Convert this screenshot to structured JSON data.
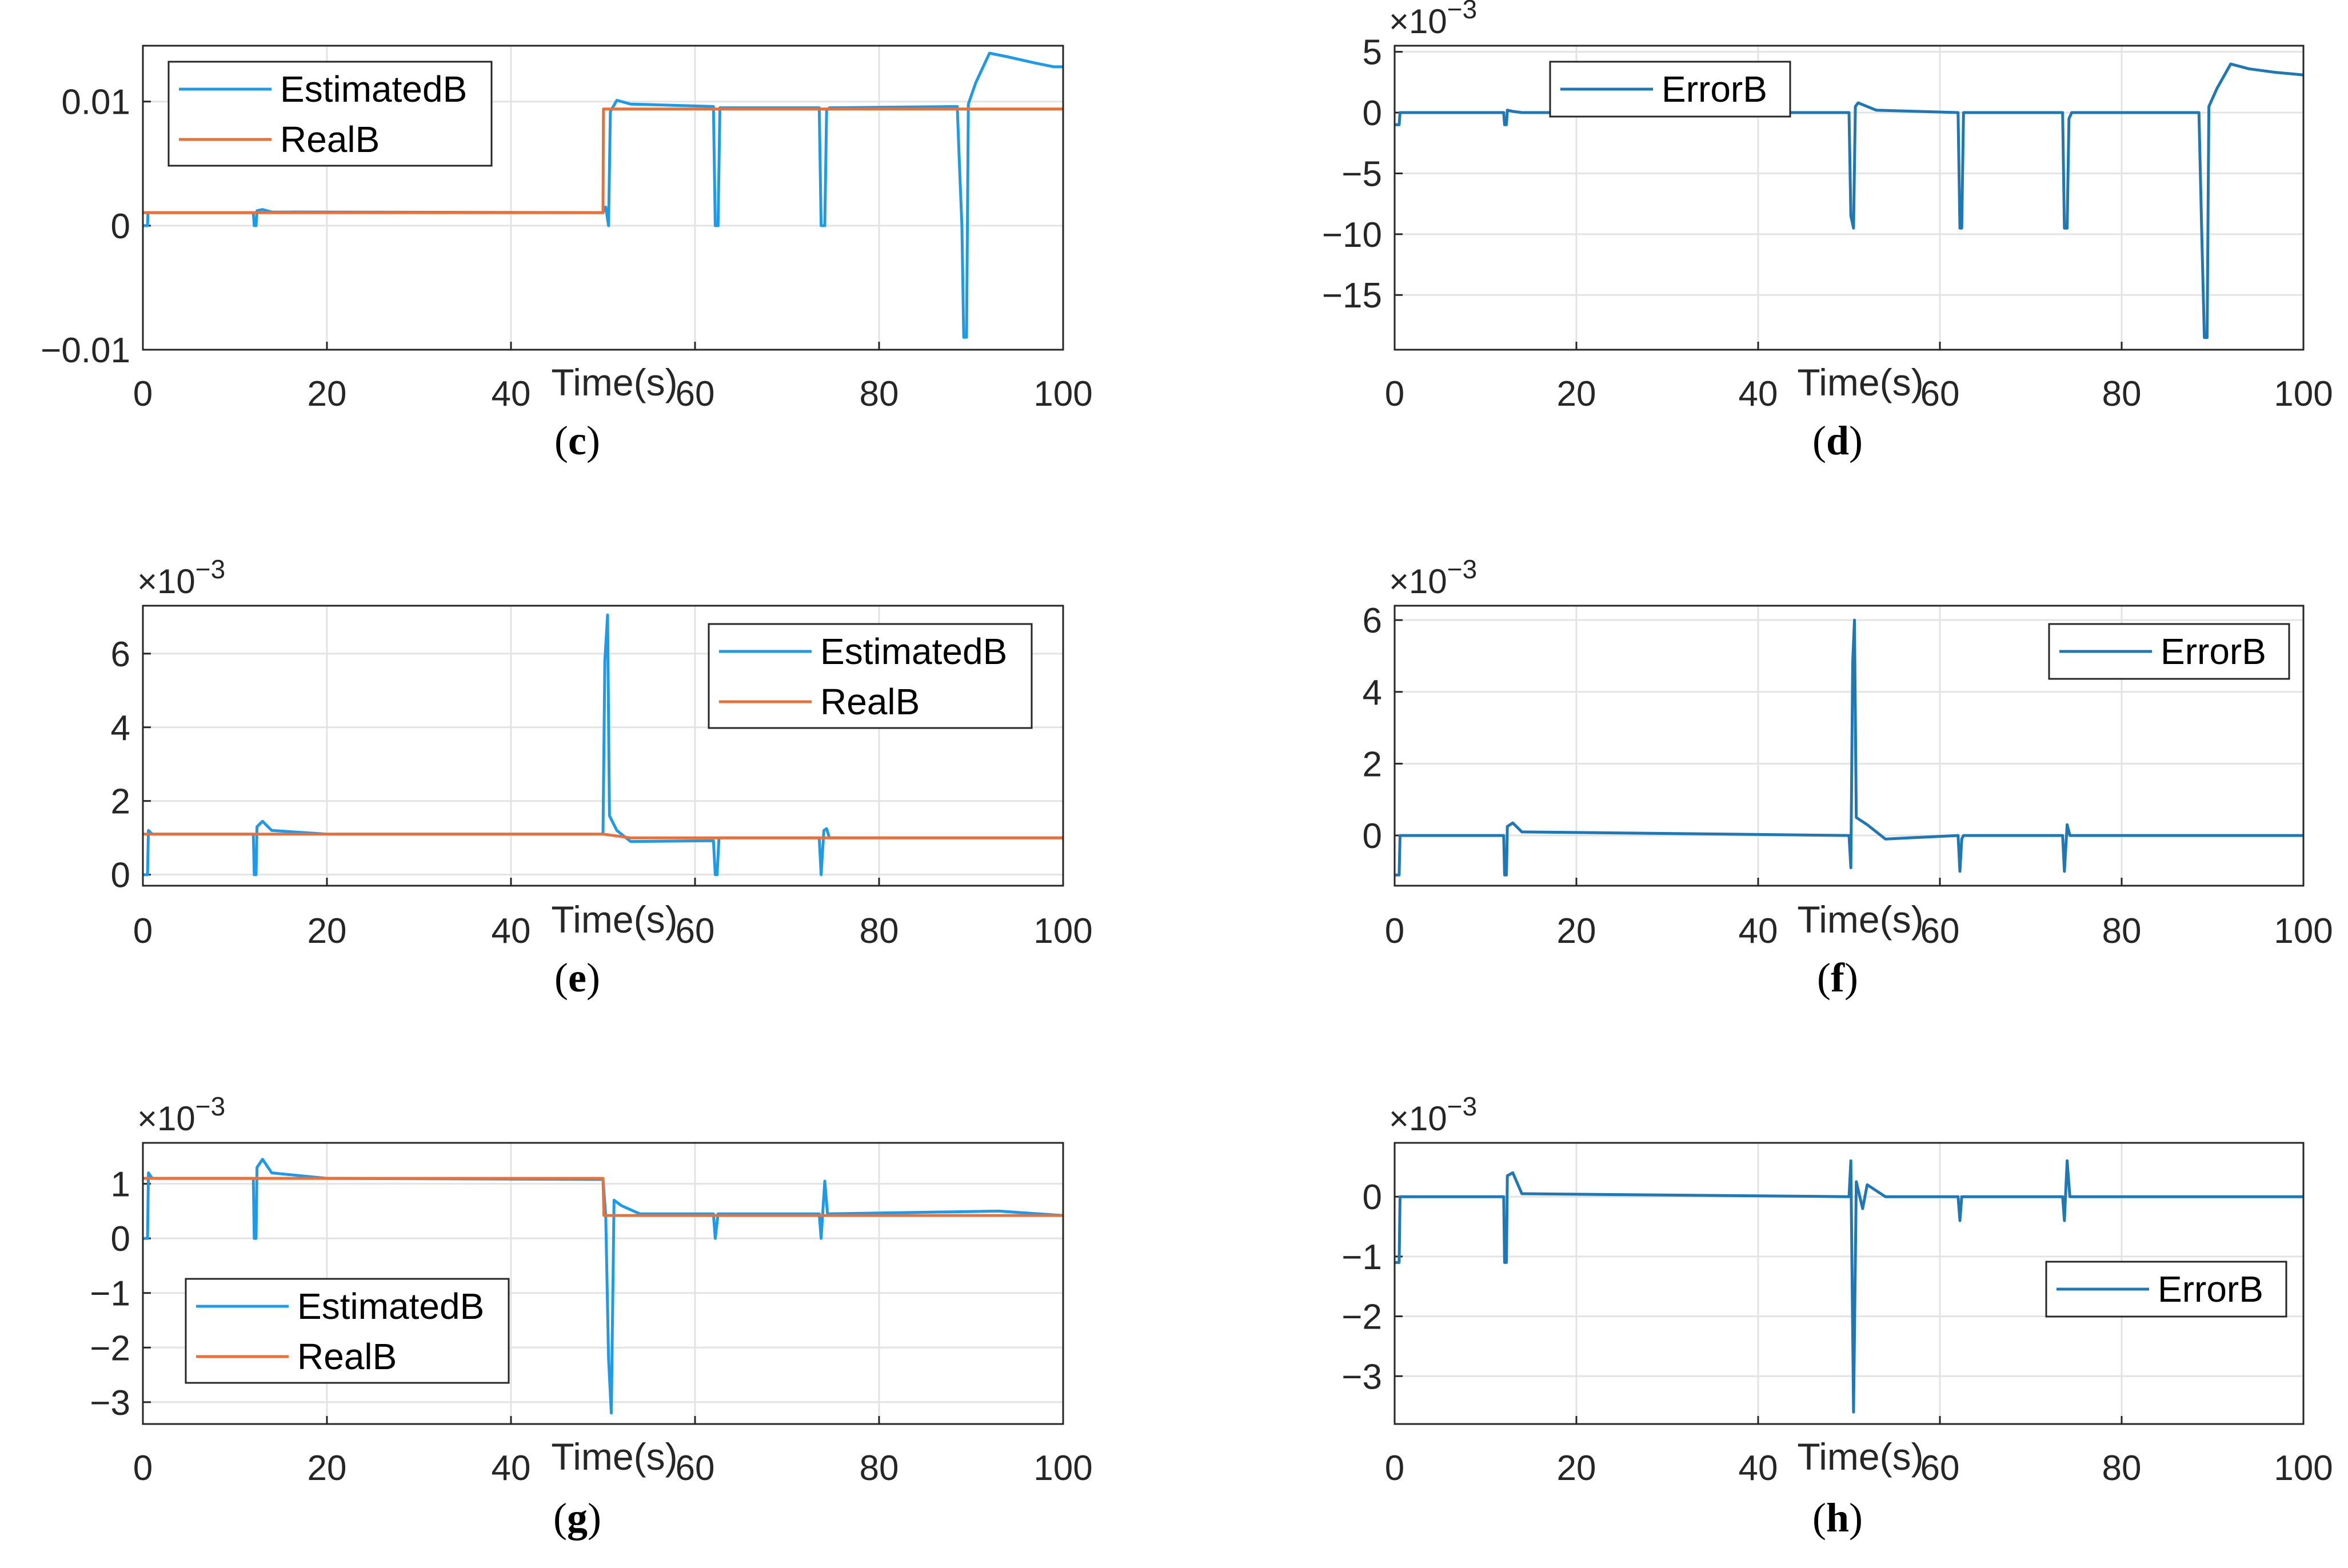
{
  "colors": {
    "estimated": "#1f9ae6",
    "real": "#e8703a",
    "error": "#1f77b4"
  },
  "chart_data": [
    {
      "id": "c",
      "type": "line",
      "caption": "c",
      "xlabel": "Time(s)",
      "multiplier": "",
      "xlim": [
        0,
        100
      ],
      "ylim": [
        -0.01,
        0.0145
      ],
      "xticks": [
        0,
        20,
        40,
        60,
        80,
        100
      ],
      "xtick_labels": [
        "0",
        "20",
        "40",
        "60",
        "80",
        "100"
      ],
      "yticks": [
        -0.01,
        0,
        0.01
      ],
      "ytick_labels": [
        "−0.01",
        "0",
        "0.01"
      ],
      "legend": {
        "position": "top-left",
        "entries": [
          "EstimatedB",
          "RealB"
        ]
      },
      "series": [
        {
          "name": "EstimatedB",
          "color_key": "estimated",
          "points": [
            [
              0,
              0
            ],
            [
              0.5,
              0
            ],
            [
              0.55,
              0.00105
            ],
            [
              12,
              0.00105
            ],
            [
              12.1,
              0
            ],
            [
              12.3,
              0
            ],
            [
              12.4,
              0.0012
            ],
            [
              13,
              0.0013
            ],
            [
              14,
              0.0011
            ],
            [
              50,
              0.00105
            ],
            [
              50.3,
              0.0015
            ],
            [
              50.6,
              0
            ],
            [
              50.8,
              0.0092
            ],
            [
              51.5,
              0.0101
            ],
            [
              53,
              0.0098
            ],
            [
              62,
              0.0096
            ],
            [
              62.2,
              0
            ],
            [
              62.5,
              0
            ],
            [
              62.7,
              0.0095
            ],
            [
              73.5,
              0.0095
            ],
            [
              73.7,
              0
            ],
            [
              74.1,
              0
            ],
            [
              74.3,
              0.0093
            ],
            [
              74.6,
              0.0095
            ],
            [
              88.5,
              0.0096
            ],
            [
              88.7,
              0.0055
            ],
            [
              89,
              0
            ],
            [
              89.2,
              -0.009
            ],
            [
              89.5,
              -0.009
            ],
            [
              89.7,
              0.0098
            ],
            [
              90.5,
              0.0115
            ],
            [
              92,
              0.0139
            ],
            [
              94,
              0.0136
            ],
            [
              97,
              0.0131
            ],
            [
              99,
              0.0128
            ],
            [
              100,
              0.0128
            ]
          ]
        },
        {
          "name": "RealB",
          "color_key": "real",
          "points": [
            [
              0,
              0.00105
            ],
            [
              50,
              0.00105
            ],
            [
              50.05,
              0.0094
            ],
            [
              100,
              0.0094
            ]
          ]
        }
      ]
    },
    {
      "id": "d",
      "type": "line",
      "caption": "d",
      "xlabel": "Time(s)",
      "multiplier": "×10−3",
      "xlim": [
        0,
        100
      ],
      "ylim": [
        -19.5,
        5.5
      ],
      "xticks": [
        0,
        20,
        40,
        60,
        80,
        100
      ],
      "xtick_labels": [
        "0",
        "20",
        "40",
        "60",
        "80",
        "100"
      ],
      "yticks": [
        -15,
        -10,
        -5,
        0,
        5
      ],
      "ytick_labels": [
        "−15",
        "−10",
        "−5",
        "0",
        "5"
      ],
      "legend": {
        "position": "top-left",
        "entries": [
          "ErrorB"
        ]
      },
      "series": [
        {
          "name": "ErrorB",
          "color_key": "error",
          "points": [
            [
              0,
              -1
            ],
            [
              0.5,
              -1
            ],
            [
              0.6,
              0
            ],
            [
              12,
              0
            ],
            [
              12.1,
              -1
            ],
            [
              12.3,
              -1
            ],
            [
              12.4,
              0.2
            ],
            [
              13,
              0.1
            ],
            [
              14,
              0
            ],
            [
              50,
              0
            ],
            [
              50.2,
              -8.5
            ],
            [
              50.5,
              -9.5
            ],
            [
              50.7,
              0.5
            ],
            [
              51,
              0.8
            ],
            [
              53,
              0.2
            ],
            [
              62,
              0
            ],
            [
              62.2,
              -9.5
            ],
            [
              62.4,
              -9.5
            ],
            [
              62.6,
              0
            ],
            [
              73.5,
              0
            ],
            [
              73.7,
              -9.5
            ],
            [
              74,
              -9.5
            ],
            [
              74.2,
              -0.5
            ],
            [
              74.5,
              0
            ],
            [
              88.5,
              0
            ],
            [
              88.8,
              -9.5
            ],
            [
              89.1,
              -18.5
            ],
            [
              89.4,
              -18.5
            ],
            [
              89.6,
              0.5
            ],
            [
              90.5,
              2
            ],
            [
              92,
              4
            ],
            [
              94,
              3.6
            ],
            [
              97,
              3.3
            ],
            [
              100,
              3.1
            ]
          ]
        }
      ]
    },
    {
      "id": "e",
      "type": "line",
      "caption": "e",
      "xlabel": "Time(s)",
      "multiplier": "×10−3",
      "xlim": [
        0,
        100
      ],
      "ylim": [
        -0.3,
        7.3
      ],
      "xticks": [
        0,
        20,
        40,
        60,
        80,
        100
      ],
      "xtick_labels": [
        "0",
        "20",
        "40",
        "60",
        "80",
        "100"
      ],
      "yticks": [
        0,
        2,
        4,
        6
      ],
      "ytick_labels": [
        "0",
        "2",
        "4",
        "6"
      ],
      "legend": {
        "position": "top-right",
        "entries": [
          "EstimatedB",
          "RealB"
        ]
      },
      "series": [
        {
          "name": "EstimatedB",
          "color_key": "estimated",
          "points": [
            [
              0,
              0
            ],
            [
              0.5,
              0
            ],
            [
              0.6,
              1.2
            ],
            [
              1,
              1.1
            ],
            [
              12,
              1.1
            ],
            [
              12.1,
              0
            ],
            [
              12.3,
              0
            ],
            [
              12.4,
              1.3
            ],
            [
              13,
              1.45
            ],
            [
              14,
              1.2
            ],
            [
              20,
              1.1
            ],
            [
              50,
              1.1
            ],
            [
              50.2,
              5.8
            ],
            [
              50.5,
              7.05
            ],
            [
              50.7,
              1.6
            ],
            [
              51.5,
              1.2
            ],
            [
              53,
              0.9
            ],
            [
              62,
              0.92
            ],
            [
              62.2,
              0
            ],
            [
              62.4,
              0
            ],
            [
              62.6,
              1.0
            ],
            [
              73.5,
              1.0
            ],
            [
              73.7,
              0
            ],
            [
              74,
              1.2
            ],
            [
              74.3,
              1.25
            ],
            [
              74.6,
              1.0
            ],
            [
              100,
              1.0
            ]
          ]
        },
        {
          "name": "RealB",
          "color_key": "real",
          "points": [
            [
              0,
              1.1
            ],
            [
              50,
              1.1
            ],
            [
              53,
              1.0
            ],
            [
              100,
              1.0
            ]
          ]
        }
      ]
    },
    {
      "id": "f",
      "type": "line",
      "caption": "f",
      "xlabel": "Time(s)",
      "multiplier": "×10−3",
      "xlim": [
        0,
        100
      ],
      "ylim": [
        -1.4,
        6.4
      ],
      "xticks": [
        0,
        20,
        40,
        60,
        80,
        100
      ],
      "xtick_labels": [
        "0",
        "20",
        "40",
        "60",
        "80",
        "100"
      ],
      "yticks": [
        0,
        2,
        4,
        6
      ],
      "ytick_labels": [
        "0",
        "2",
        "4",
        "6"
      ],
      "legend": {
        "position": "top-right",
        "entries": [
          "ErrorB"
        ]
      },
      "series": [
        {
          "name": "ErrorB",
          "color_key": "error",
          "points": [
            [
              0,
              -1.1
            ],
            [
              0.5,
              -1.1
            ],
            [
              0.6,
              0
            ],
            [
              12,
              0
            ],
            [
              12.1,
              -1.1
            ],
            [
              12.3,
              -1.1
            ],
            [
              12.4,
              0.25
            ],
            [
              13,
              0.35
            ],
            [
              14,
              0.1
            ],
            [
              50,
              0
            ],
            [
              50.2,
              -0.9
            ],
            [
              50.4,
              4.8
            ],
            [
              50.6,
              6.0
            ],
            [
              50.8,
              0.5
            ],
            [
              52,
              0.3
            ],
            [
              54,
              -0.1
            ],
            [
              62,
              0
            ],
            [
              62.2,
              -1.0
            ],
            [
              62.4,
              -0.1
            ],
            [
              62.6,
              0
            ],
            [
              73.5,
              0
            ],
            [
              73.7,
              -1.0
            ],
            [
              74,
              0.3
            ],
            [
              74.3,
              0
            ],
            [
              100,
              0
            ]
          ]
        }
      ]
    },
    {
      "id": "g",
      "type": "line",
      "caption": "g",
      "xlabel": "Time(s)",
      "multiplier": "×10−3",
      "xlim": [
        0,
        100
      ],
      "ylim": [
        -3.4,
        1.75
      ],
      "xticks": [
        0,
        20,
        40,
        60,
        80,
        100
      ],
      "xtick_labels": [
        "0",
        "20",
        "40",
        "60",
        "80",
        "100"
      ],
      "yticks": [
        -3,
        -2,
        -1,
        0,
        1
      ],
      "ytick_labels": [
        "−3",
        "−2",
        "−1",
        "0",
        "1"
      ],
      "legend": {
        "position": "bottom-left",
        "entries": [
          "EstimatedB",
          "RealB"
        ]
      },
      "series": [
        {
          "name": "EstimatedB",
          "color_key": "estimated",
          "points": [
            [
              0,
              0
            ],
            [
              0.5,
              0
            ],
            [
              0.6,
              1.2
            ],
            [
              1,
              1.1
            ],
            [
              12,
              1.1
            ],
            [
              12.1,
              0
            ],
            [
              12.3,
              0
            ],
            [
              12.4,
              1.3
            ],
            [
              13,
              1.45
            ],
            [
              14,
              1.2
            ],
            [
              20,
              1.1
            ],
            [
              50,
              1.08
            ],
            [
              50.3,
              0.4
            ],
            [
              50.6,
              -2.2
            ],
            [
              50.9,
              -3.2
            ],
            [
              51.2,
              0.7
            ],
            [
              52,
              0.6
            ],
            [
              54,
              0.45
            ],
            [
              62,
              0.45
            ],
            [
              62.2,
              0
            ],
            [
              62.5,
              0.45
            ],
            [
              73.5,
              0.45
            ],
            [
              73.7,
              0
            ],
            [
              74.1,
              1.05
            ],
            [
              74.4,
              0.45
            ],
            [
              93,
              0.5
            ],
            [
              100,
              0.42
            ]
          ]
        },
        {
          "name": "RealB",
          "color_key": "real",
          "points": [
            [
              0,
              1.1
            ],
            [
              50,
              1.1
            ],
            [
              50.1,
              0.42
            ],
            [
              100,
              0.42
            ]
          ]
        }
      ]
    },
    {
      "id": "h",
      "type": "line",
      "caption": "h",
      "xlabel": "Time(s)",
      "multiplier": "×10−3",
      "xlim": [
        0,
        100
      ],
      "ylim": [
        -3.8,
        0.9
      ],
      "xticks": [
        0,
        20,
        40,
        60,
        80,
        100
      ],
      "xtick_labels": [
        "0",
        "20",
        "40",
        "60",
        "80",
        "100"
      ],
      "yticks": [
        -3,
        -2,
        -1,
        0
      ],
      "ytick_labels": [
        "−3",
        "−2",
        "−1",
        "0"
      ],
      "legend": {
        "position": "bottom-right",
        "entries": [
          "ErrorB"
        ]
      },
      "series": [
        {
          "name": "ErrorB",
          "color_key": "error",
          "points": [
            [
              0,
              -1.1
            ],
            [
              0.5,
              -1.1
            ],
            [
              0.6,
              0
            ],
            [
              12,
              0
            ],
            [
              12.1,
              -1.1
            ],
            [
              12.3,
              -1.1
            ],
            [
              12.4,
              0.35
            ],
            [
              13,
              0.4
            ],
            [
              14,
              0.05
            ],
            [
              50,
              0
            ],
            [
              50.2,
              0.6
            ],
            [
              50.5,
              -3.6
            ],
            [
              50.8,
              0.25
            ],
            [
              51.5,
              -0.2
            ],
            [
              52,
              0.2
            ],
            [
              54,
              0
            ],
            [
              62,
              0
            ],
            [
              62.2,
              -0.4
            ],
            [
              62.4,
              0
            ],
            [
              73.5,
              0
            ],
            [
              73.7,
              -0.4
            ],
            [
              74,
              0.6
            ],
            [
              74.3,
              0
            ],
            [
              100,
              0
            ]
          ]
        }
      ]
    }
  ]
}
